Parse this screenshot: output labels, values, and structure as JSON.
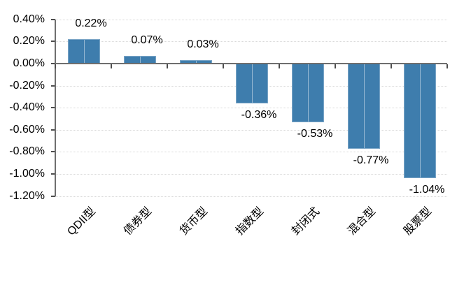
{
  "chart_data": {
    "type": "bar",
    "title": "",
    "xlabel": "",
    "ylabel": "",
    "categories": [
      "QDII型",
      "债券型",
      "货币型",
      "指数型",
      "封闭式",
      "混合型",
      "股票型"
    ],
    "values": [
      0.22,
      0.07,
      0.03,
      -0.36,
      -0.53,
      -0.77,
      -1.04
    ],
    "data_labels": [
      "0.22%",
      "0.07%",
      "0.03%",
      "-0.36%",
      "-0.53%",
      "-0.77%",
      "-1.04%"
    ],
    "ylim": [
      -1.2,
      0.4
    ],
    "ytick_step": 0.2,
    "ytick_labels": [
      "0.40%",
      "0.20%",
      "0.00%",
      "-0.20%",
      "-0.40%",
      "-0.60%",
      "-0.80%",
      "-1.00%",
      "-1.20%"
    ],
    "ytick_values": [
      0.4,
      0.2,
      0.0,
      -0.2,
      -0.4,
      -0.6,
      -0.8,
      -1.0,
      -1.2
    ],
    "grid": "horizontal-dotted",
    "legend": "none",
    "bar_color": "#3e7dad",
    "bar_highlight": "rgba(255,255,255,0.45)",
    "axis_color": "#6e6e6e",
    "tick_color": "#4d4d4d",
    "gridline_color": "#d9d9d9",
    "label_color": "#000000"
  }
}
